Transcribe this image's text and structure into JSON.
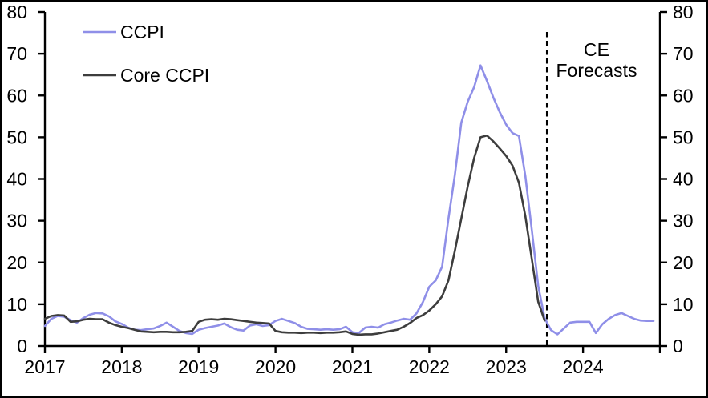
{
  "chart_data": {
    "type": "line",
    "title": "",
    "grid": false,
    "background": "#ffffff",
    "axis_color": "#000000",
    "y_axis": {
      "min": 0,
      "max": 80,
      "tick_step": 10,
      "ticks": [
        0,
        10,
        20,
        30,
        40,
        50,
        60,
        70,
        80
      ],
      "sides": [
        "left",
        "right"
      ]
    },
    "x_axis": {
      "unit": "month",
      "start_year": 2017,
      "end_year": 2025,
      "tick_years": [
        2017,
        2018,
        2019,
        2020,
        2021,
        2022,
        2023,
        2024
      ],
      "tick_labels": [
        "2017",
        "2018",
        "2019",
        "2020",
        "2021",
        "2022",
        "2023",
        "2024"
      ],
      "end_tick": true
    },
    "legend": {
      "position": "top-left",
      "items": [
        "CCPI",
        "Core CCPI"
      ]
    },
    "annotations": {
      "forecast_divider_year": 2023.53,
      "forecast_divider_style": "dashed",
      "forecast_label": [
        "CE",
        "Forecasts"
      ]
    },
    "series": [
      {
        "name": "CCPI",
        "color": "#8F8FE8",
        "start_year": 2017,
        "start_month": 1,
        "frequency": "monthly",
        "values": [
          4.8,
          6.5,
          7.2,
          7.0,
          6.2,
          5.6,
          6.7,
          7.5,
          7.9,
          7.8,
          7.1,
          5.9,
          5.3,
          4.4,
          3.9,
          3.8,
          4.0,
          4.2,
          4.8,
          5.6,
          4.6,
          3.6,
          3.1,
          2.9,
          3.9,
          4.3,
          4.6,
          4.9,
          5.4,
          4.5,
          3.9,
          3.7,
          4.9,
          5.2,
          4.8,
          5.0,
          6.0,
          6.5,
          6.0,
          5.5,
          4.6,
          4.1,
          4.0,
          3.9,
          4.0,
          3.9,
          4.0,
          4.6,
          3.3,
          3.1,
          4.4,
          4.6,
          4.4,
          5.2,
          5.6,
          6.1,
          6.5,
          6.3,
          7.8,
          10.5,
          14.2,
          15.7,
          19.0,
          30.5,
          41.0,
          53.5,
          58.5,
          62.0,
          67.2,
          63.5,
          59.5,
          56.0,
          53.0,
          51.0,
          50.3,
          40.7,
          27.9,
          14.4,
          6.7,
          3.8,
          2.8,
          4.2,
          5.6,
          5.8,
          5.8,
          5.8,
          3.1,
          5.2,
          6.5,
          7.4,
          7.9,
          7.2,
          6.5,
          6.1,
          6.0,
          6.0
        ]
      },
      {
        "name": "Core CCPI",
        "color": "#3D3D3D",
        "start_year": 2017,
        "start_month": 1,
        "frequency": "monthly",
        "values": [
          6.5,
          7.2,
          7.4,
          7.3,
          5.8,
          5.9,
          6.3,
          6.5,
          6.4,
          6.4,
          5.6,
          5.0,
          4.6,
          4.3,
          3.9,
          3.5,
          3.4,
          3.3,
          3.4,
          3.4,
          3.3,
          3.3,
          3.4,
          3.6,
          5.8,
          6.3,
          6.4,
          6.3,
          6.5,
          6.4,
          6.2,
          6.0,
          5.8,
          5.6,
          5.5,
          5.4,
          3.6,
          3.3,
          3.2,
          3.2,
          3.1,
          3.2,
          3.2,
          3.1,
          3.2,
          3.2,
          3.3,
          3.5,
          2.9,
          2.7,
          2.8,
          2.8,
          3.0,
          3.3,
          3.6,
          3.9,
          4.6,
          5.5,
          6.7,
          7.4,
          8.5,
          10.0,
          11.9,
          15.7,
          22.8,
          30.5,
          38.2,
          45.0,
          50.0,
          50.4,
          49.0,
          47.3,
          45.5,
          43.2,
          39.1,
          31.1,
          20.9,
          10.6,
          6.1
        ]
      }
    ]
  }
}
